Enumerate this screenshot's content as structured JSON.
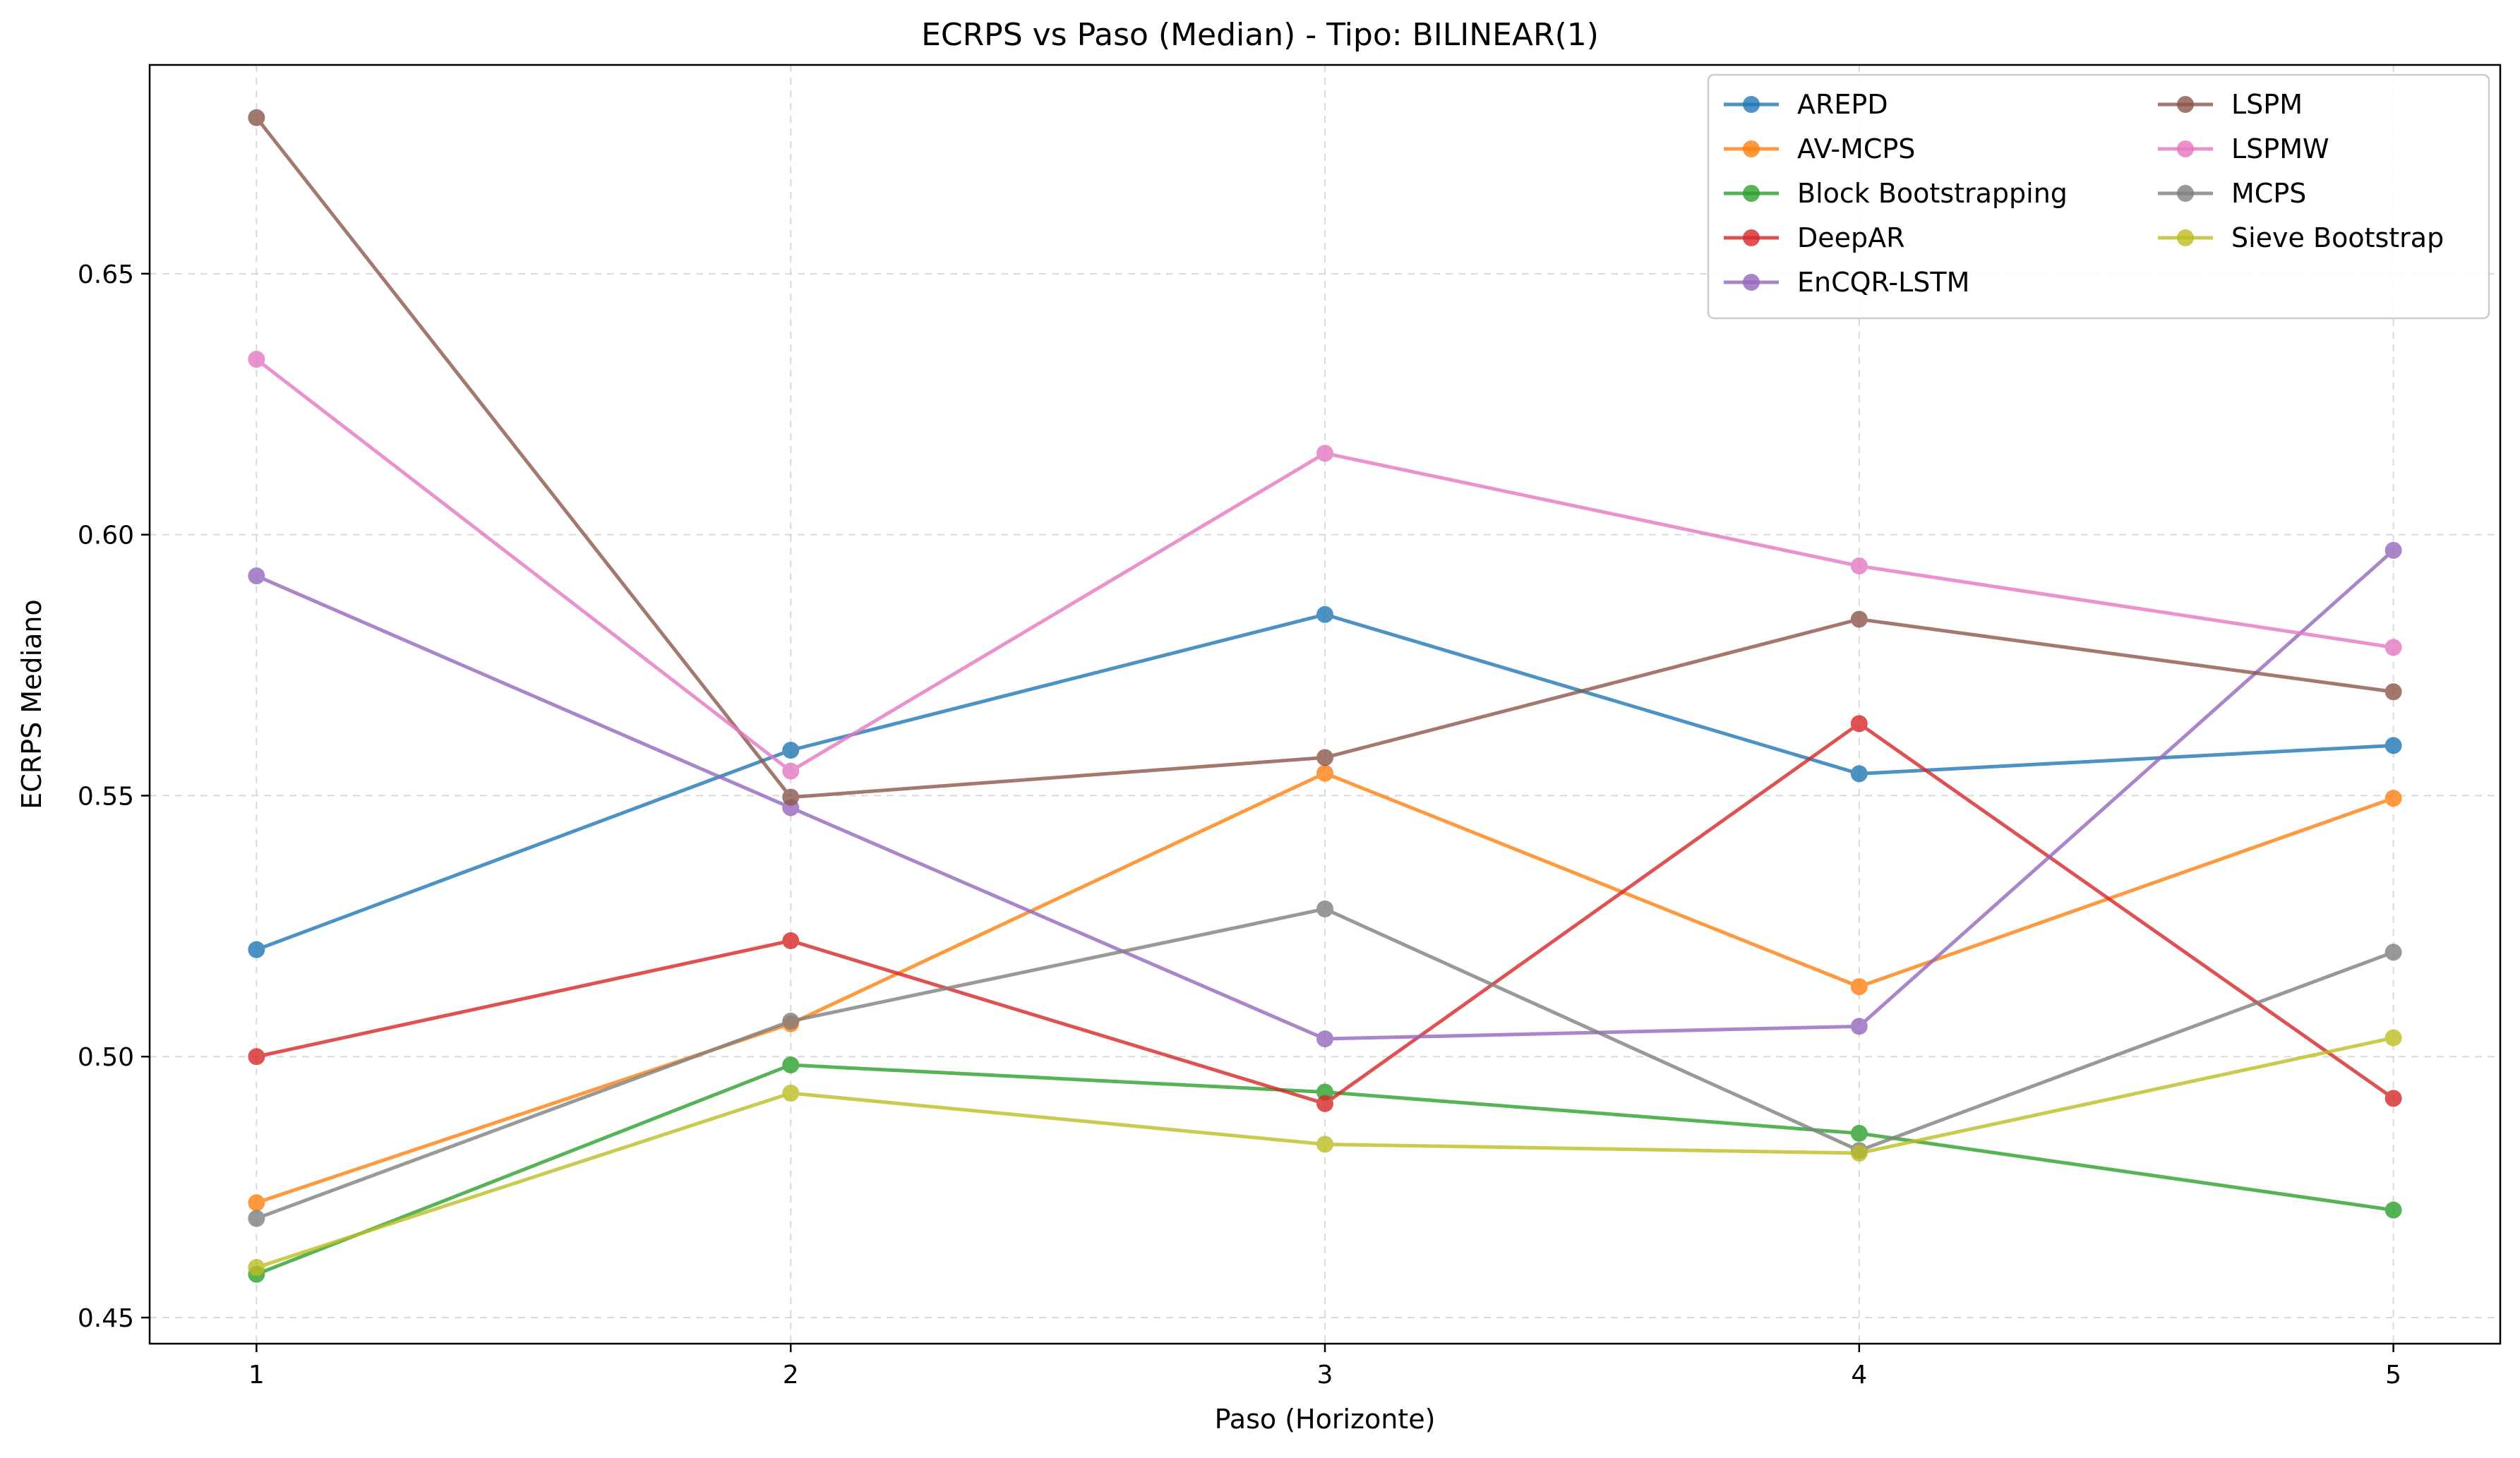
{
  "chart_data": {
    "type": "line",
    "title": "ECRPS vs Paso (Median) - Tipo: BILINEAR(1)",
    "xlabel": "Paso (Horizonte)",
    "ylabel": "ECRPS Mediano",
    "x": [
      1,
      2,
      3,
      4,
      5
    ],
    "xlim": [
      0.8,
      5.2
    ],
    "ylim": [
      0.445,
      0.69
    ],
    "yticks": [
      0.45,
      0.5,
      0.55,
      0.6,
      0.65
    ],
    "ytick_labels": [
      "0.45",
      "0.50",
      "0.55",
      "0.60",
      "0.65"
    ],
    "xtick_labels": [
      "1",
      "2",
      "3",
      "4",
      "5"
    ],
    "grid": true,
    "legend_position": "top-right",
    "series": [
      {
        "name": "AREPD",
        "color": "#1f77b4",
        "values": [
          0.5205,
          0.5587,
          0.5847,
          0.5542,
          0.5596
        ]
      },
      {
        "name": "AV-MCPS",
        "color": "#ff7f0e",
        "values": [
          0.472,
          0.5063,
          0.5543,
          0.5134,
          0.5495
        ]
      },
      {
        "name": "Block Bootstrapping",
        "color": "#2ca02c",
        "values": [
          0.4583,
          0.4984,
          0.4932,
          0.4853,
          0.4706
        ]
      },
      {
        "name": "DeepAR",
        "color": "#d62728",
        "values": [
          0.5,
          0.5222,
          0.491,
          0.5638,
          0.492
        ]
      },
      {
        "name": "EnCQR-LSTM",
        "color": "#9467bd",
        "values": [
          0.5921,
          0.5477,
          0.5034,
          0.5058,
          0.597
        ]
      },
      {
        "name": "LSPM",
        "color": "#8c564b",
        "values": [
          0.6799,
          0.5497,
          0.5573,
          0.5838,
          0.5699
        ]
      },
      {
        "name": "LSPMW",
        "color": "#e377c2",
        "values": [
          0.6336,
          0.5547,
          0.6156,
          0.594,
          0.5784
        ]
      },
      {
        "name": "MCPS",
        "color": "#7f7f7f",
        "values": [
          0.469,
          0.5068,
          0.5283,
          0.482,
          0.52
        ]
      },
      {
        "name": "Sieve Bootstrap",
        "color": "#bcbd22",
        "values": [
          0.4596,
          0.493,
          0.4832,
          0.4815,
          0.5036
        ]
      }
    ]
  }
}
